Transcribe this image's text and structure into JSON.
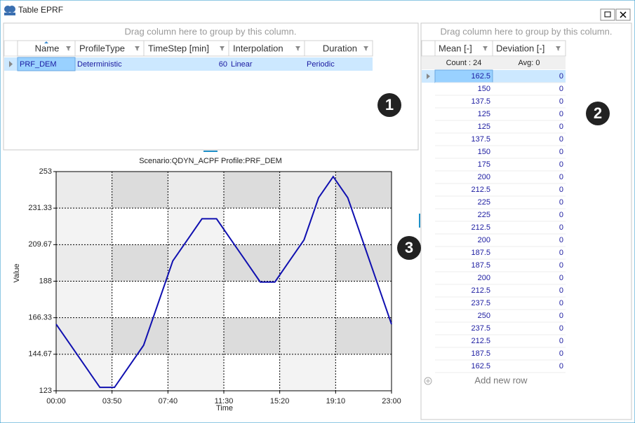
{
  "window": {
    "title": "Table EPRF"
  },
  "profiles": {
    "group_hint": "Drag column here to group by this column.",
    "columns": [
      "Name",
      "ProfileType",
      "TimeStep [min]",
      "Interpolation",
      "Duration"
    ],
    "rows": [
      [
        "PRF_DEM",
        "Deterministic",
        60,
        "Linear",
        "Periodic"
      ]
    ]
  },
  "values_grid": {
    "group_hint": "Drag column here to group by this column.",
    "columns": [
      "Mean [-]",
      "Deviation [-]"
    ],
    "summary": [
      "Count : 24",
      "Avg: 0"
    ],
    "rows": [
      [
        162.5,
        0
      ],
      [
        150,
        0
      ],
      [
        137.5,
        0
      ],
      [
        125,
        0
      ],
      [
        125,
        0
      ],
      [
        137.5,
        0
      ],
      [
        150,
        0
      ],
      [
        175,
        0
      ],
      [
        200,
        0
      ],
      [
        212.5,
        0
      ],
      [
        225,
        0
      ],
      [
        225,
        0
      ],
      [
        212.5,
        0
      ],
      [
        200,
        0
      ],
      [
        187.5,
        0
      ],
      [
        187.5,
        0
      ],
      [
        200,
        0
      ],
      [
        212.5,
        0
      ],
      [
        237.5,
        0
      ],
      [
        250,
        0
      ],
      [
        237.5,
        0
      ],
      [
        212.5,
        0
      ],
      [
        187.5,
        0
      ],
      [
        162.5,
        0
      ]
    ],
    "add_row": "Add new row"
  },
  "chart": {
    "type": "line",
    "title": "Scenario:QDYN_ACPF Profile:PRF_DEM",
    "x_label": "Time",
    "y_label": "Value",
    "x": [
      0,
      60,
      120,
      180,
      240,
      300,
      360,
      420,
      480,
      540,
      600,
      660,
      720,
      780,
      840,
      900,
      960,
      1020,
      1080,
      1140,
      1200,
      1260,
      1320,
      1380
    ],
    "xlim": [
      0,
      1380
    ],
    "xticks": [
      {
        "value": 0,
        "label": "00:00"
      },
      {
        "value": 230,
        "label": "03:50"
      },
      {
        "value": 460,
        "label": "07:40"
      },
      {
        "value": 690,
        "label": "11:30"
      },
      {
        "value": 920,
        "label": "15:20"
      },
      {
        "value": 1150,
        "label": "19:10"
      },
      {
        "value": 1380,
        "label": "23:00"
      }
    ],
    "ylim": [
      123,
      253
    ],
    "yticks": [
      123,
      144.67,
      166.33,
      188,
      209.67,
      231.33,
      253
    ],
    "color": "#1010b0",
    "grid": true
  },
  "callouts": [
    "1",
    "2",
    "3"
  ]
}
